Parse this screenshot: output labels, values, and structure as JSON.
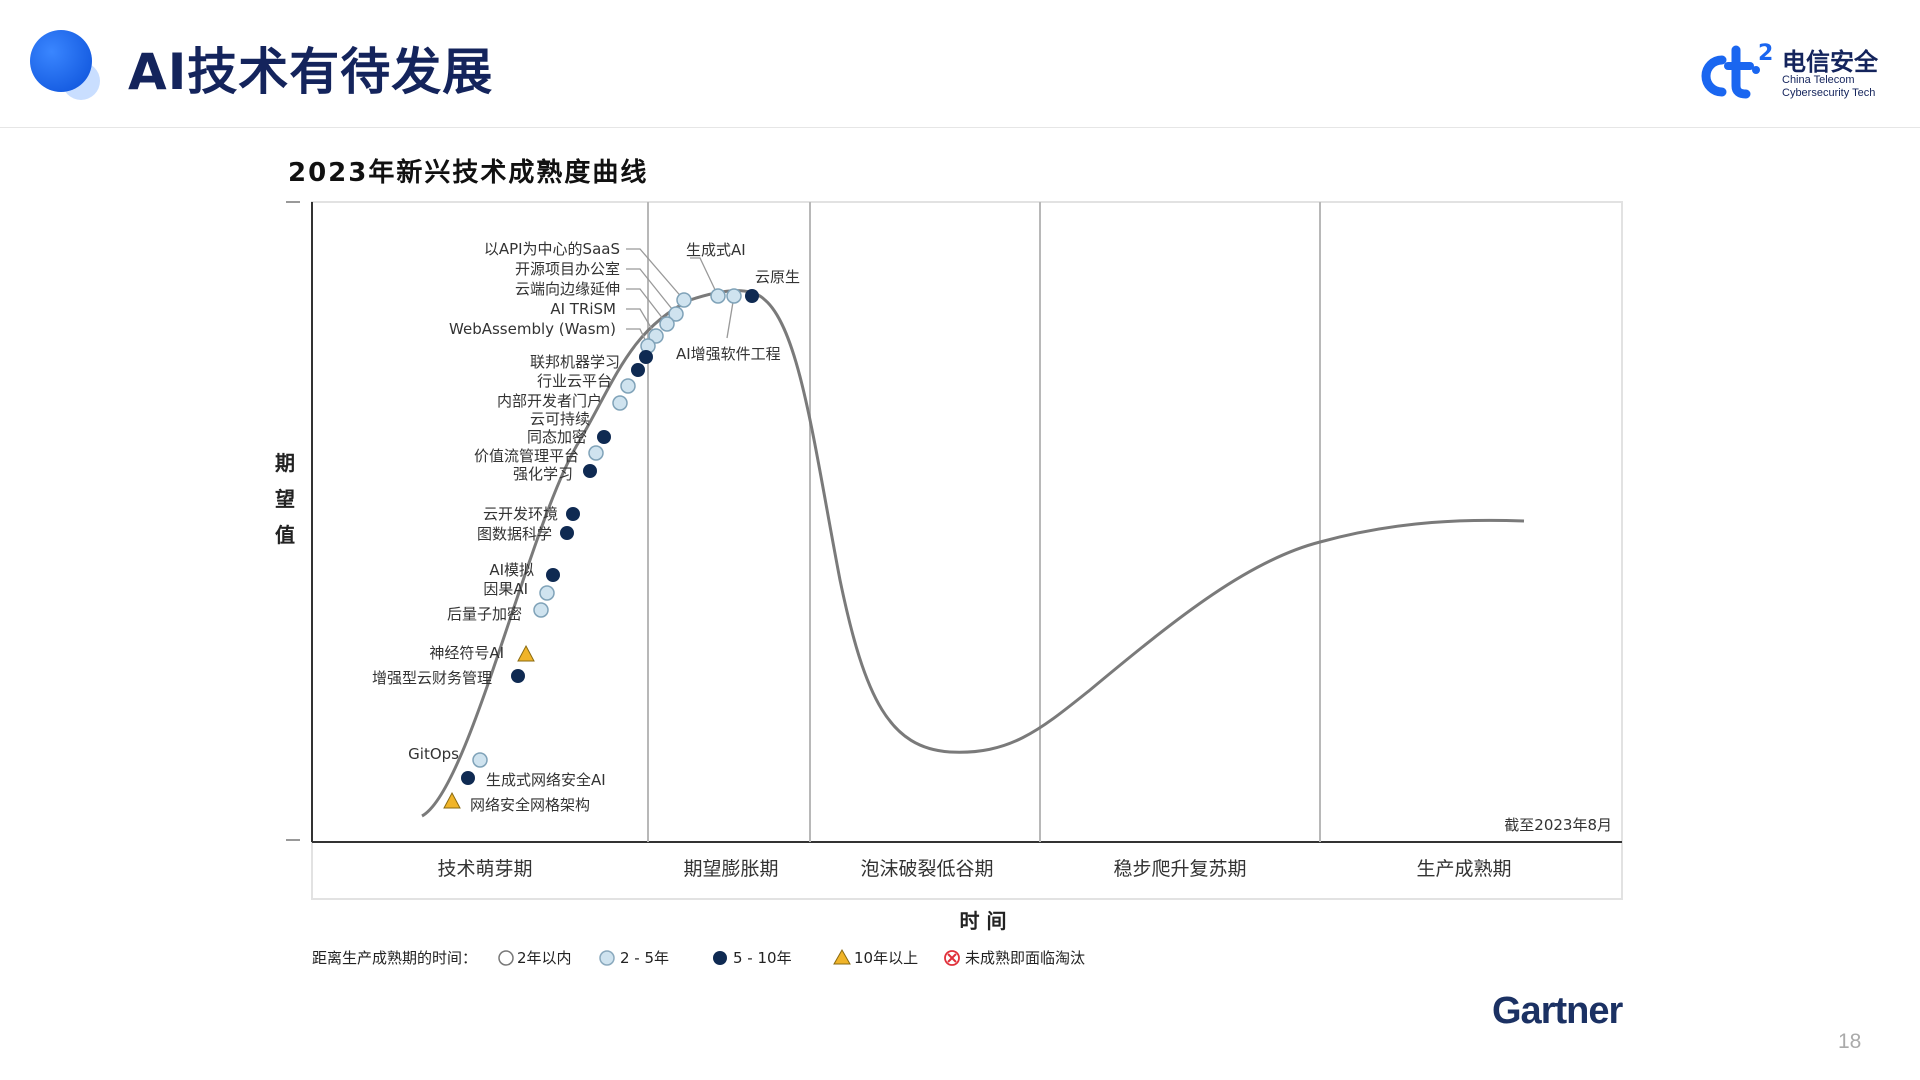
{
  "header": {
    "title": "AI技术有待发展",
    "logo_cn": "电信安全",
    "logo_en_line1": "China Telecom",
    "logo_en_line2": "Cybersecurity Tech"
  },
  "chart_title": "2023年新兴技术成熟度曲线",
  "chart_data": {
    "type": "hype-cycle",
    "title": "2023年新兴技术成熟度曲线",
    "ylabel": "期望值",
    "xlabel": "时 间",
    "as_of": "截至2023年8月",
    "phases": [
      "技术萌芽期",
      "期望膨胀期",
      "泡沫破裂低谷期",
      "稳步爬升复苏期",
      "生产成熟期"
    ],
    "legend_prefix": "距离生产成熟期的时间：",
    "legend": [
      {
        "key": "lt2",
        "label": "2年以内",
        "marker": "hollow-circle"
      },
      {
        "key": "2to5",
        "label": "2 - 5年",
        "marker": "light-blue-circle"
      },
      {
        "key": "5to10",
        "label": "5 - 10年",
        "marker": "dark-navy-circle"
      },
      {
        "key": "gt10",
        "label": "10年以上",
        "marker": "yellow-triangle"
      },
      {
        "key": "obsolete",
        "label": "未成熟即面临淘汰",
        "marker": "red-x-circle"
      }
    ],
    "technologies": [
      {
        "name": "以API为中心的SaaS",
        "maturity": "2to5"
      },
      {
        "name": "开源项目办公室",
        "maturity": "2to5"
      },
      {
        "name": "云端向边缘延伸",
        "maturity": "2to5"
      },
      {
        "name": "AI TRiSM",
        "maturity": "2to5"
      },
      {
        "name": "WebAssembly (Wasm)",
        "maturity": "2to5"
      },
      {
        "name": "生成式AI",
        "maturity": "2to5"
      },
      {
        "name": "AI增强软件工程",
        "maturity": "2to5"
      },
      {
        "name": "云原生",
        "maturity": "5to10"
      },
      {
        "name": "联邦机器学习",
        "maturity": "5to10"
      },
      {
        "name": "行业云平台",
        "maturity": "5to10"
      },
      {
        "name": "内部开发者门户",
        "maturity": "2to5"
      },
      {
        "name": "云可持续",
        "maturity": "2to5"
      },
      {
        "name": "同态加密",
        "maturity": "5to10"
      },
      {
        "name": "价值流管理平台",
        "maturity": "2to5"
      },
      {
        "name": "强化学习",
        "maturity": "5to10"
      },
      {
        "name": "云开发环境",
        "maturity": "5to10"
      },
      {
        "name": "图数据科学",
        "maturity": "5to10"
      },
      {
        "name": "AI模拟",
        "maturity": "5to10"
      },
      {
        "name": "因果AI",
        "maturity": "2to5"
      },
      {
        "name": "后量子加密",
        "maturity": "2to5"
      },
      {
        "name": "神经符号AI",
        "maturity": "gt10"
      },
      {
        "name": "增强型云财务管理",
        "maturity": "5to10"
      },
      {
        "name": "GitOps",
        "maturity": "2to5"
      },
      {
        "name": "生成式网络安全AI",
        "maturity": "5to10"
      },
      {
        "name": "网络安全网格架构",
        "maturity": "gt10"
      }
    ]
  },
  "brand": "Gartner",
  "page_number": "18",
  "colors": {
    "title_navy": "#14245c",
    "accent_blue": "#1a66f0",
    "curve_gray": "#7a7a7a",
    "dot_light": "#cfe3ef",
    "dot_dark": "#0f2a52",
    "triangle_yellow": "#f0b429",
    "red_x": "#e0303a"
  }
}
